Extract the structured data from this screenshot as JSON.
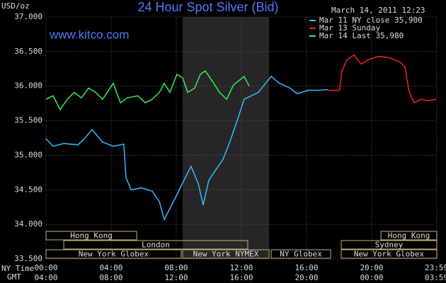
{
  "chart_data": {
    "type": "line",
    "title": "24 Hour Spot Silver (Bid)",
    "y_label": "USD/oz",
    "timestamp": "March 14, 2011 12:23",
    "watermark": "www.kitco.com",
    "x_row_labels": [
      "NY Time",
      "GMT"
    ],
    "xlim": [
      0,
      24
    ],
    "xticks": [
      {
        "value": 0,
        "label": "00:00"
      },
      {
        "value": 4,
        "label": "04:00"
      },
      {
        "value": 8,
        "label": "08:00"
      },
      {
        "value": 12,
        "label": "12:00"
      },
      {
        "value": 16,
        "label": "16:00"
      },
      {
        "value": 20,
        "label": "20:00"
      },
      {
        "value": 23.98,
        "label": "23:59"
      }
    ],
    "gmt_labels": [
      "04:00",
      "08:00",
      "12:00",
      "16:00",
      "20:00",
      "00:00",
      "03:59"
    ],
    "ylim": [
      33.5,
      37
    ],
    "yticks": [
      {
        "value": 33.5,
        "label": "33.500"
      },
      {
        "value": 34,
        "label": "34.000"
      },
      {
        "value": 34.5,
        "label": "34.500"
      },
      {
        "value": 35,
        "label": "35.000"
      },
      {
        "value": 35.5,
        "label": "35.500"
      },
      {
        "value": 36,
        "label": "36.000"
      },
      {
        "value": 36.5,
        "label": "36.500"
      },
      {
        "value": 37,
        "label": "37.000"
      }
    ],
    "grid": true,
    "series": [
      {
        "name": "Mar 11 NY close 35,900",
        "color": "#33bbff",
        "x": [
          0,
          0.43,
          1.09,
          1.96,
          2.39,
          2.83,
          3.48,
          4.13,
          4.78,
          4.91,
          5.22,
          5.87,
          6.52,
          6.96,
          7.26,
          7.61,
          8.04,
          8.48,
          8.91,
          9.35,
          9.65,
          10.0,
          10.43,
          10.87,
          11.3,
          11.74,
          12.17,
          12.61,
          13.04,
          13.48,
          13.83,
          14.35,
          15.0,
          15.43,
          16.09,
          16.74,
          17.3
        ],
        "values": [
          35.24,
          35.13,
          35.17,
          35.15,
          35.25,
          35.37,
          35.19,
          35.13,
          35.16,
          34.68,
          34.5,
          34.53,
          34.48,
          34.33,
          34.07,
          34.23,
          34.43,
          34.64,
          34.84,
          34.59,
          34.28,
          34.64,
          34.79,
          34.94,
          35.2,
          35.5,
          35.81,
          35.86,
          35.91,
          36.04,
          36.14,
          36.04,
          35.97,
          35.89,
          35.94,
          35.94,
          35.95
        ]
      },
      {
        "name": "Mar 13 Sunday",
        "color": "#ee2222",
        "x": [
          17.3,
          18.04,
          18.17,
          18.48,
          18.91,
          19.35,
          19.78,
          20.43,
          21.09,
          21.74,
          22.04,
          22.3,
          22.61,
          23.04,
          23.48,
          23.96
        ],
        "values": [
          35.94,
          35.94,
          36.22,
          36.38,
          36.45,
          36.32,
          36.38,
          36.43,
          36.41,
          36.35,
          36.28,
          35.92,
          35.76,
          35.81,
          35.79,
          35.81
        ]
      },
      {
        "name": "Mar 14 Last 35,980",
        "color": "#33ee55",
        "x": [
          0,
          0.43,
          0.87,
          1.3,
          1.74,
          2.17,
          2.61,
          3.04,
          3.48,
          4.13,
          4.57,
          5.0,
          5.65,
          6.09,
          6.52,
          6.96,
          7.26,
          7.61,
          8.04,
          8.39,
          8.7,
          9.13,
          9.48,
          9.78,
          10.22,
          10.65,
          11.09,
          11.52,
          11.96,
          12.17,
          12.48
        ],
        "values": [
          35.81,
          35.86,
          35.66,
          35.81,
          35.91,
          35.83,
          35.97,
          35.91,
          35.81,
          36.04,
          35.76,
          35.83,
          35.86,
          35.76,
          35.81,
          35.91,
          36.04,
          35.91,
          36.17,
          36.12,
          35.91,
          35.97,
          36.17,
          36.22,
          36.07,
          35.91,
          35.81,
          36.02,
          36.1,
          36.14,
          36.0
        ]
      }
    ],
    "sessions": [
      [
        {
          "name": "Hong Kong",
          "start": 0,
          "end": 5.57
        },
        {
          "name": "Hong Kong",
          "start": 20.57,
          "end": 24
        }
      ],
      [
        {
          "name": "London",
          "start": 1.09,
          "end": 12.39
        },
        {
          "name": "Sydney",
          "start": 18.13,
          "end": 24
        }
      ],
      [
        {
          "name": "New York Globex",
          "start": 0,
          "end": 8.3
        },
        {
          "name": "New York NYMEX",
          "start": 8.39,
          "end": 13.7,
          "shaded": true
        },
        {
          "name": "NY Globex",
          "start": 13.83,
          "end": 17.48
        },
        {
          "name": "New York Globex",
          "start": 18.13,
          "end": 24
        }
      ]
    ]
  }
}
